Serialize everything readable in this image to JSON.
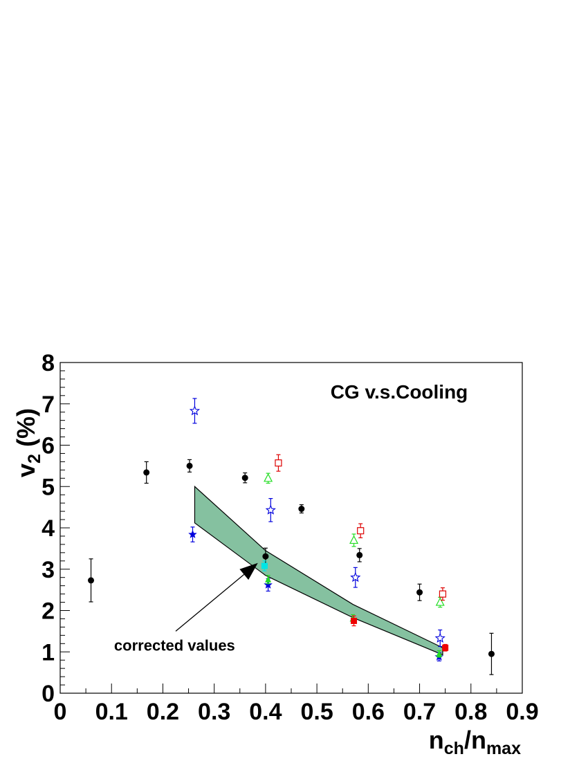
{
  "chart_data": {
    "type": "scatter",
    "title": "CG v.s.Cooling",
    "xlabel": {
      "main": "n",
      "sub1": "ch",
      "mid": "/n",
      "sub2": "max"
    },
    "ylabel": {
      "main": "v",
      "sub": "2",
      "unit": " (%)"
    },
    "xlim": [
      0,
      0.9
    ],
    "ylim": [
      0,
      8
    ],
    "xticks": [
      "0",
      "0.1",
      "0.2",
      "0.3",
      "0.4",
      "0.5",
      "0.6",
      "0.7",
      "0.8",
      "0.9"
    ],
    "yticks": [
      "0",
      "1",
      "2",
      "3",
      "4",
      "5",
      "6",
      "7",
      "8"
    ],
    "grid": false,
    "band": {
      "color": "#85c1a0",
      "upper": [
        {
          "x": 0.262,
          "y": 5.0
        },
        {
          "x": 0.4,
          "y": 3.45
        },
        {
          "x": 0.57,
          "y": 2.15
        },
        {
          "x": 0.745,
          "y": 1.1
        }
      ],
      "lower": [
        {
          "x": 0.262,
          "y": 4.12
        },
        {
          "x": 0.4,
          "y": 2.85
        },
        {
          "x": 0.57,
          "y": 1.83
        },
        {
          "x": 0.745,
          "y": 0.93
        }
      ]
    },
    "annotation": {
      "text": "corrected values",
      "text_x": 0.105,
      "text_y": 1.03,
      "tail_x": 0.225,
      "tail_y": 1.5,
      "head_x": 0.385,
      "head_y": 3.15
    },
    "series": [
      {
        "marker": "filled-circle",
        "color": "#000000",
        "points": [
          {
            "x": 0.06,
            "y": 2.73,
            "err": 0.52
          },
          {
            "x": 0.168,
            "y": 5.34,
            "err": 0.26
          },
          {
            "x": 0.252,
            "y": 5.5,
            "err": 0.15
          },
          {
            "x": 0.36,
            "y": 5.21,
            "err": 0.12
          },
          {
            "x": 0.4,
            "y": 3.31,
            "err": 0.2
          },
          {
            "x": 0.47,
            "y": 4.46,
            "err": 0.1
          },
          {
            "x": 0.583,
            "y": 3.34,
            "err": 0.16
          },
          {
            "x": 0.7,
            "y": 2.44,
            "err": 0.2
          },
          {
            "x": 0.84,
            "y": 0.95,
            "err": 0.5
          }
        ]
      },
      {
        "marker": "open-star",
        "color": "#0000dd",
        "points": [
          {
            "x": 0.262,
            "y": 6.83,
            "err": 0.3
          },
          {
            "x": 0.41,
            "y": 4.43,
            "err": 0.28
          },
          {
            "x": 0.575,
            "y": 2.8,
            "err": 0.24
          },
          {
            "x": 0.74,
            "y": 1.33,
            "err": 0.2
          }
        ]
      },
      {
        "marker": "filled-star",
        "color": "#0000dd",
        "points": [
          {
            "x": 0.258,
            "y": 3.84,
            "err": 0.18
          },
          {
            "x": 0.405,
            "y": 2.62,
            "err": 0.15
          },
          {
            "x": 0.738,
            "y": 0.88,
            "err": 0.1
          }
        ]
      },
      {
        "marker": "open-triangle",
        "color": "#22dd22",
        "points": [
          {
            "x": 0.405,
            "y": 5.2,
            "err": 0.12
          },
          {
            "x": 0.572,
            "y": 3.7,
            "err": 0.15
          },
          {
            "x": 0.74,
            "y": 2.2,
            "err": 0.12
          }
        ]
      },
      {
        "marker": "filled-triangle",
        "color": "#22dd22",
        "points": [
          {
            "x": 0.405,
            "y": 2.75,
            "err": 0.1
          },
          {
            "x": 0.57,
            "y": 1.8,
            "err": 0.1
          },
          {
            "x": 0.738,
            "y": 0.95,
            "err": 0.08
          }
        ]
      },
      {
        "marker": "open-square",
        "color": "#dd0000",
        "points": [
          {
            "x": 0.425,
            "y": 5.57,
            "err": 0.2
          },
          {
            "x": 0.585,
            "y": 3.93,
            "err": 0.17
          },
          {
            "x": 0.745,
            "y": 2.4,
            "err": 0.15
          }
        ]
      },
      {
        "marker": "filled-square",
        "color": "#ee0000",
        "points": [
          {
            "x": 0.572,
            "y": 1.75,
            "err": 0.12
          },
          {
            "x": 0.75,
            "y": 1.1,
            "err": 0.08
          }
        ]
      },
      {
        "marker": "filled-square",
        "color": "#00e5e5",
        "points": [
          {
            "x": 0.398,
            "y": 3.08,
            "err": 0.12
          }
        ]
      }
    ]
  }
}
